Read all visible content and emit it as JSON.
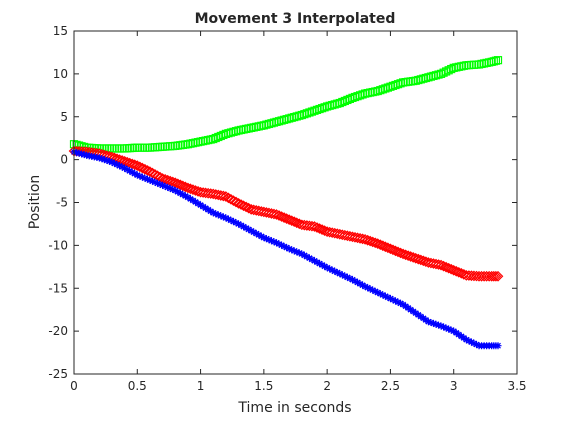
{
  "chart_data": {
    "type": "scatter",
    "title": "Movement 3 Interpolated",
    "xlabel": "Time in seconds",
    "ylabel": "Position",
    "xlim": [
      0,
      3.5
    ],
    "ylim": [
      -25,
      15
    ],
    "xticks": [
      "0",
      "0.5",
      "1",
      "1.5",
      "2",
      "2.5",
      "3",
      "3.5"
    ],
    "yticks": [
      "15",
      "10",
      "5",
      "0",
      "-5",
      "-10",
      "-15",
      "-20",
      "-25"
    ],
    "grid": false,
    "legend": "none",
    "series": [
      {
        "color": "#00ff00",
        "marker": "square",
        "points": [
          [
            0.0,
            1.8
          ],
          [
            0.1,
            1.4
          ],
          [
            0.2,
            1.3
          ],
          [
            0.3,
            1.3
          ],
          [
            0.4,
            1.3
          ],
          [
            0.5,
            1.4
          ],
          [
            0.6,
            1.4
          ],
          [
            0.7,
            1.5
          ],
          [
            0.8,
            1.6
          ],
          [
            0.9,
            1.8
          ],
          [
            1.0,
            2.1
          ],
          [
            1.1,
            2.4
          ],
          [
            1.2,
            3.0
          ],
          [
            1.3,
            3.4
          ],
          [
            1.4,
            3.7
          ],
          [
            1.5,
            4.0
          ],
          [
            1.6,
            4.4
          ],
          [
            1.7,
            4.8
          ],
          [
            1.8,
            5.2
          ],
          [
            1.9,
            5.7
          ],
          [
            2.0,
            6.2
          ],
          [
            2.1,
            6.6
          ],
          [
            2.2,
            7.2
          ],
          [
            2.3,
            7.7
          ],
          [
            2.4,
            8.0
          ],
          [
            2.5,
            8.5
          ],
          [
            2.6,
            9.0
          ],
          [
            2.7,
            9.2
          ],
          [
            2.8,
            9.6
          ],
          [
            2.9,
            10.0
          ],
          [
            3.0,
            10.7
          ],
          [
            3.1,
            11.0
          ],
          [
            3.2,
            11.1
          ],
          [
            3.3,
            11.4
          ],
          [
            3.35,
            11.6
          ]
        ]
      },
      {
        "color": "#ff0000",
        "marker": "diamond",
        "points": [
          [
            0.0,
            1.0
          ],
          [
            0.1,
            0.9
          ],
          [
            0.2,
            0.7
          ],
          [
            0.3,
            0.3
          ],
          [
            0.4,
            -0.2
          ],
          [
            0.5,
            -0.7
          ],
          [
            0.6,
            -1.4
          ],
          [
            0.7,
            -2.2
          ],
          [
            0.8,
            -2.7
          ],
          [
            0.9,
            -3.3
          ],
          [
            1.0,
            -3.8
          ],
          [
            1.1,
            -4.0
          ],
          [
            1.2,
            -4.3
          ],
          [
            1.3,
            -5.1
          ],
          [
            1.4,
            -5.8
          ],
          [
            1.5,
            -6.1
          ],
          [
            1.6,
            -6.4
          ],
          [
            1.7,
            -7.0
          ],
          [
            1.8,
            -7.6
          ],
          [
            1.9,
            -7.8
          ],
          [
            2.0,
            -8.4
          ],
          [
            2.1,
            -8.7
          ],
          [
            2.2,
            -9.0
          ],
          [
            2.3,
            -9.3
          ],
          [
            2.4,
            -9.8
          ],
          [
            2.5,
            -10.4
          ],
          [
            2.6,
            -11.0
          ],
          [
            2.7,
            -11.5
          ],
          [
            2.8,
            -12.0
          ],
          [
            2.9,
            -12.3
          ],
          [
            3.0,
            -12.9
          ],
          [
            3.1,
            -13.5
          ],
          [
            3.2,
            -13.6
          ],
          [
            3.3,
            -13.6
          ],
          [
            3.35,
            -13.6
          ]
        ]
      },
      {
        "color": "#0000ff",
        "marker": "star",
        "points": [
          [
            0.0,
            0.9
          ],
          [
            0.1,
            0.5
          ],
          [
            0.2,
            0.2
          ],
          [
            0.3,
            -0.3
          ],
          [
            0.4,
            -1.0
          ],
          [
            0.5,
            -1.8
          ],
          [
            0.6,
            -2.4
          ],
          [
            0.7,
            -3.0
          ],
          [
            0.8,
            -3.6
          ],
          [
            0.9,
            -4.4
          ],
          [
            1.0,
            -5.3
          ],
          [
            1.1,
            -6.2
          ],
          [
            1.2,
            -6.8
          ],
          [
            1.3,
            -7.5
          ],
          [
            1.4,
            -8.3
          ],
          [
            1.5,
            -9.1
          ],
          [
            1.6,
            -9.7
          ],
          [
            1.7,
            -10.4
          ],
          [
            1.8,
            -11.0
          ],
          [
            1.9,
            -11.8
          ],
          [
            2.0,
            -12.6
          ],
          [
            2.1,
            -13.3
          ],
          [
            2.2,
            -14.0
          ],
          [
            2.3,
            -14.8
          ],
          [
            2.4,
            -15.5
          ],
          [
            2.5,
            -16.2
          ],
          [
            2.6,
            -16.9
          ],
          [
            2.7,
            -17.9
          ],
          [
            2.8,
            -18.9
          ],
          [
            2.9,
            -19.4
          ],
          [
            3.0,
            -20.0
          ],
          [
            3.1,
            -21.0
          ],
          [
            3.2,
            -21.7
          ],
          [
            3.3,
            -21.7
          ],
          [
            3.35,
            -21.7
          ]
        ]
      }
    ]
  }
}
